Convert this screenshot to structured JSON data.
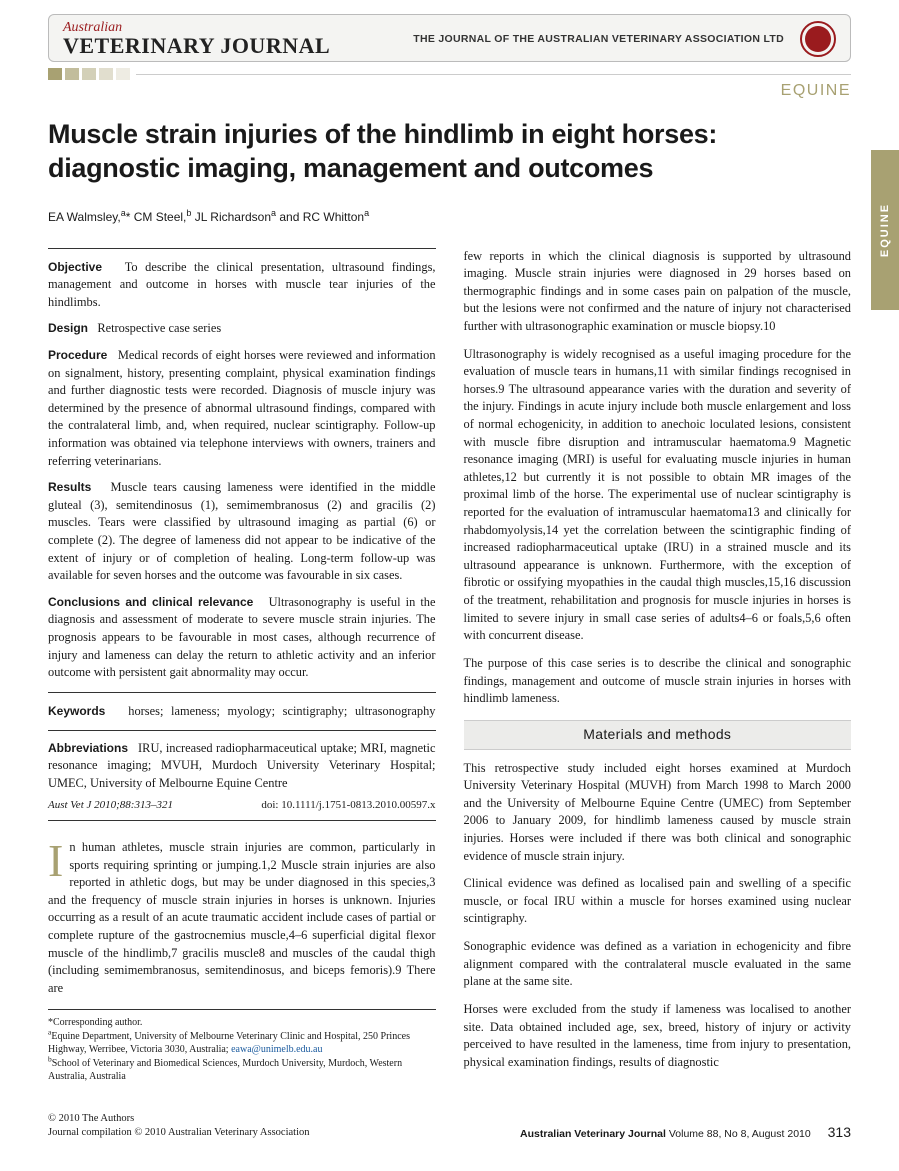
{
  "header": {
    "pre": "Australian",
    "name": "VETERINARY JOURNAL",
    "subtitle": "THE JOURNAL OF THE AUSTRALIAN VETERINARY ASSOCIATION LTD"
  },
  "section_tag": "EQUINE",
  "side_tab": "EQUINE",
  "title": "Muscle strain injuries of the hindlimb in eight horses: diagnostic imaging, management and outcomes",
  "authors_html": "EA Walmsley,<sup>a</sup>* CM Steel,<sup>b</sup> JL Richardson<sup>a</sup> and RC Whitton<sup>a</sup>",
  "abstract": {
    "objective_label": "Objective",
    "objective_text": "To describe the clinical presentation, ultrasound findings, management and outcome in horses with muscle tear injuries of the hindlimbs.",
    "design_label": "Design",
    "design_text": "Retrospective case series",
    "procedure_label": "Procedure",
    "procedure_text": "Medical records of eight horses were reviewed and information on signalment, history, presenting complaint, physical examination findings and further diagnostic tests were recorded. Diagnosis of muscle injury was determined by the presence of abnormal ultrasound findings, compared with the contralateral limb, and, when required, nuclear scintigraphy. Follow-up information was obtained via telephone interviews with owners, trainers and referring veterinarians.",
    "results_label": "Results",
    "results_text": "Muscle tears causing lameness were identified in the middle gluteal (3), semitendinosus (1), semimembranosus (2) and gracilis (2) muscles. Tears were classified by ultrasound imaging as partial (6) or complete (2). The degree of lameness did not appear to be indicative of the extent of injury or of completion of healing. Long-term follow-up was available for seven horses and the outcome was favourable in six cases.",
    "conclusions_label": "Conclusions and clinical relevance",
    "conclusions_text": "Ultrasonography is useful in the diagnosis and assessment of moderate to severe muscle strain injuries. The prognosis appears to be favourable in most cases, although recurrence of injury and lameness can delay the return to athletic activity and an inferior outcome with persistent gait abnormality may occur."
  },
  "keywords_label": "Keywords",
  "keywords_text": "horses; lameness; myology; scintigraphy; ultrasonography",
  "abbrev_label": "Abbreviations",
  "abbrev_text": "IRU, increased radiopharmaceutical uptake; MRI, magnetic resonance imaging; MVUH, Murdoch University Veterinary Hospital; UMEC, University of Melbourne Equine Centre",
  "citation": "Aust Vet J 2010;88:313–321",
  "doi": "doi: 10.1111/j.1751-0813.2010.00597.x",
  "intro_p1": "In human athletes, muscle strain injuries are common, particularly in sports requiring sprinting or jumping.1,2 Muscle strain injuries are also reported in athletic dogs, but may be under diagnosed in this species,3 and the frequency of muscle strain injuries in horses is unknown. Injuries occurring as a result of an acute traumatic accident include cases of partial or complete rupture of the gastrocnemius muscle,4–6 superficial digital flexor muscle of the hindlimb,7 gracilis muscle8 and muscles of the caudal thigh (including semimembranosus, semitendinosus, and biceps femoris).9 There are",
  "right_p1": "few reports in which the clinical diagnosis is supported by ultrasound imaging. Muscle strain injuries were diagnosed in 29 horses based on thermographic findings and in some cases pain on palpation of the muscle, but the lesions were not confirmed and the nature of injury not characterised further with ultrasonographic examination or muscle biopsy.10",
  "right_p2": "Ultrasonography is widely recognised as a useful imaging procedure for the evaluation of muscle tears in humans,11 with similar findings recognised in horses.9 The ultrasound appearance varies with the duration and severity of the injury. Findings in acute injury include both muscle enlargement and loss of normal echogenicity, in addition to anechoic loculated lesions, consistent with muscle fibre disruption and intramuscular haematoma.9 Magnetic resonance imaging (MRI) is useful for evaluating muscle injuries in human athletes,12 but currently it is not possible to obtain MR images of the proximal limb of the horse. The experimental use of nuclear scintigraphy is reported for the evaluation of intramuscular haematoma13 and clinically for rhabdomyolysis,14 yet the correlation between the scintigraphic finding of increased radiopharmaceutical uptake (IRU) in a strained muscle and its ultrasound appearance is unknown. Furthermore, with the exception of fibrotic or ossifying myopathies in the caudal thigh muscles,15,16 discussion of the treatment, rehabilitation and prognosis for muscle injuries in horses is limited to severe injury in small case series of adults4–6 or foals,5,6 often with concurrent disease.",
  "right_p3": "The purpose of this case series is to describe the clinical and sonographic findings, management and outcome of muscle strain injuries in horses with hindlimb lameness.",
  "materials_heading": "Materials and methods",
  "materials_p1": "This retrospective study included eight horses examined at Murdoch University Veterinary Hospital (MUVH) from March 1998 to March 2000 and the University of Melbourne Equine Centre (UMEC) from September 2006 to January 2009, for hindlimb lameness caused by muscle strain injuries. Horses were included if there was both clinical and sonographic evidence of muscle strain injury.",
  "materials_p2": "Clinical evidence was defined as localised pain and swelling of a specific muscle, or focal IRU within a muscle for horses examined using nuclear scintigraphy.",
  "materials_p3": "Sonographic evidence was defined as a variation in echogenicity and fibre alignment compared with the contralateral muscle evaluated in the same plane at the same site.",
  "materials_p4": "Horses were excluded from the study if lameness was localised to another site. Data obtained included age, sex, breed, history of injury or activity perceived to have resulted in the lameness, time from injury to presentation, physical examination findings, results of diagnostic",
  "footnotes": {
    "corresponding": "*Corresponding author.",
    "affil_a": "aEquine Department, University of Melbourne Veterinary Clinic and Hospital, 250 Princes Highway, Werribee, Victoria 3030, Australia; ",
    "email": "eawa@unimelb.edu.au",
    "affil_b": "bSchool of Veterinary and Biomedical Sciences, Murdoch University, Murdoch, Western Australia, Australia"
  },
  "footer": {
    "copyright1": "© 2010 The Authors",
    "copyright2": "Journal compilation © 2010 Australian Veterinary Association",
    "journal": "Australian Veterinary Journal",
    "issue": " Volume 88, No 8, August 2010",
    "page": "313"
  }
}
